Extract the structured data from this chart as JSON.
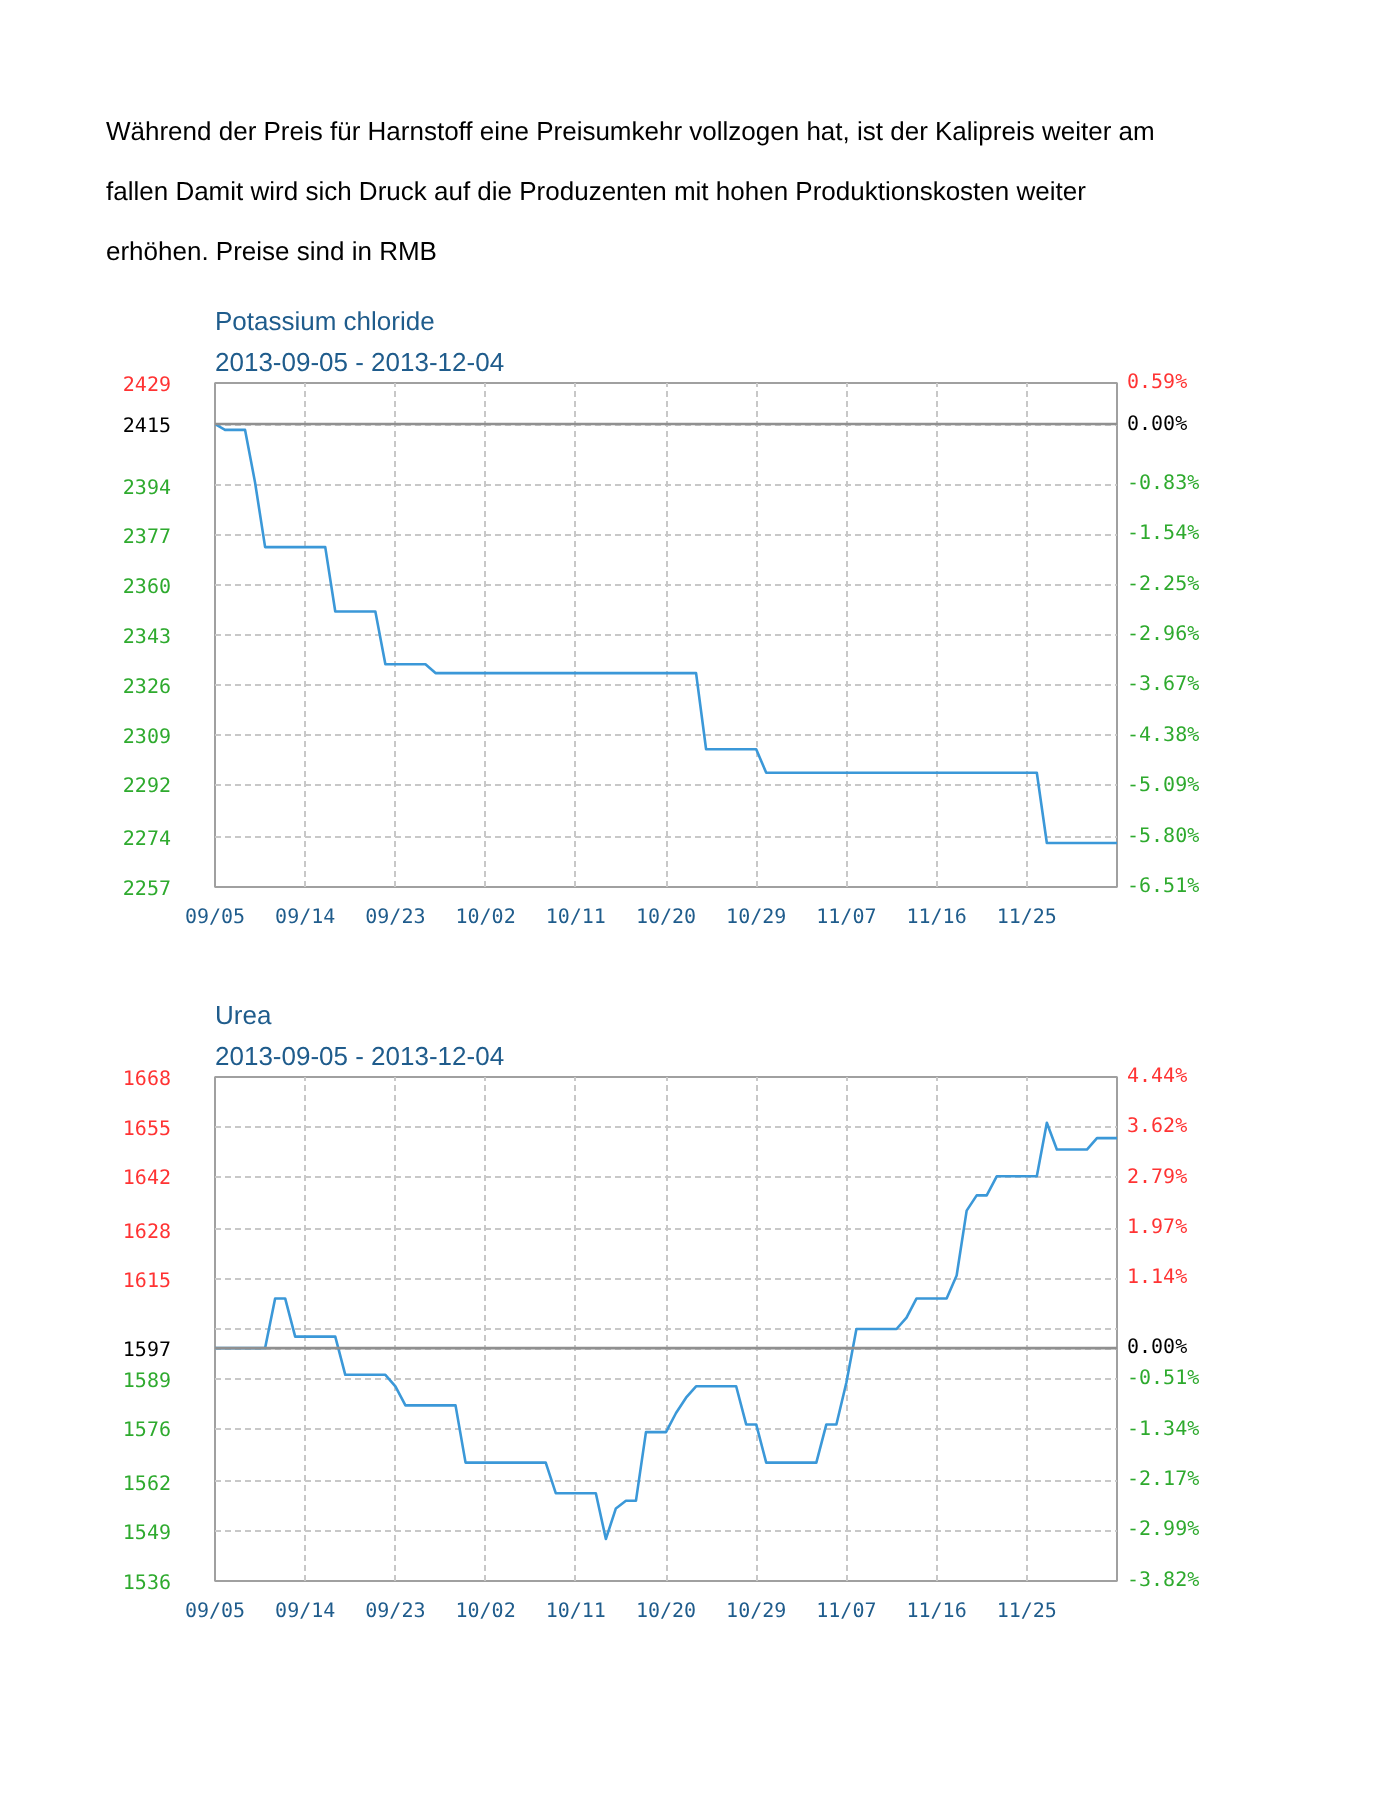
{
  "chart_data": [
    {
      "type": "line",
      "title": "Potassium chloride",
      "subtitle": "2013-09-05 - 2013-12-04",
      "annotations": [
        "Während der Preis für Harnstoff eine Preisumkehr vollzogen hat, ist der Kalipreis weiter am fallen Damit wird sich Druck auf die Produzenten mit hohen Produktionskosten weiter erhöhen. Preise sind in RMB"
      ],
      "x": [
        "2013-09-05",
        "2013-09-06",
        "2013-09-08",
        "2013-09-09",
        "2013-09-10",
        "2013-09-16",
        "2013-09-17",
        "2013-09-21",
        "2013-09-22",
        "2013-09-26",
        "2013-09-27",
        "2013-10-23",
        "2013-10-24",
        "2013-10-29",
        "2013-10-30",
        "2013-11-26",
        "2013-11-27",
        "2013-12-04"
      ],
      "series": [
        {
          "color": "#3b98d8",
          "values": [
            2415,
            2413,
            2413,
            2395,
            2373,
            2373,
            2351,
            2351,
            2333,
            2333,
            2330,
            2330,
            2304,
            2304,
            2296,
            2296,
            2272,
            2272
          ]
        }
      ],
      "xlim": [
        "2013-09-05",
        "2013-12-04"
      ],
      "xticks": [
        {
          "value": "2013-09-05",
          "label": "09/05"
        },
        {
          "value": "2013-09-14",
          "label": "09/14"
        },
        {
          "value": "2013-09-23",
          "label": "09/23"
        },
        {
          "value": "2013-10-02",
          "label": "10/02"
        },
        {
          "value": "2013-10-11",
          "label": "10/11"
        },
        {
          "value": "2013-10-20",
          "label": "10/20"
        },
        {
          "value": "2013-10-29",
          "label": "10/29"
        },
        {
          "value": "2013-11-07",
          "label": "11/07"
        },
        {
          "value": "2013-11-16",
          "label": "11/16"
        },
        {
          "value": "2013-11-25",
          "label": "11/25"
        }
      ],
      "ylim": [
        2257,
        2429
      ],
      "yticks": [
        2257,
        2274,
        2292,
        2309,
        2326,
        2343,
        2360,
        2377,
        2394,
        2415,
        2429
      ],
      "y2lim": [
        -6.51,
        0.59
      ],
      "y2ticks": [
        {
          "value": -6.51,
          "label": "-6.51%"
        },
        {
          "value": -5.8,
          "label": "-5.80%"
        },
        {
          "value": -5.09,
          "label": "-5.09%"
        },
        {
          "value": -4.38,
          "label": "-4.38%"
        },
        {
          "value": -3.67,
          "label": "-3.67%"
        },
        {
          "value": -2.96,
          "label": "-2.96%"
        },
        {
          "value": -2.25,
          "label": "-2.25%"
        },
        {
          "value": -1.54,
          "label": "-1.54%"
        },
        {
          "value": -0.83,
          "label": "-0.83%"
        },
        {
          "value": 0,
          "label": "0.00%"
        },
        {
          "value": 0.59,
          "label": "0.59%"
        }
      ],
      "ref_lines": [
        {
          "axis": "y",
          "value": 2415,
          "color": "#909090"
        }
      ],
      "grid": true
    },
    {
      "type": "line",
      "title": "Urea",
      "subtitle": "2013-09-05 - 2013-12-04",
      "x": [
        "2013-09-05",
        "2013-09-10",
        "2013-09-11",
        "2013-09-12",
        "2013-09-13",
        "2013-09-17",
        "2013-09-18",
        "2013-09-22",
        "2013-09-23",
        "2013-09-24",
        "2013-09-29",
        "2013-09-30",
        "2013-10-08",
        "2013-10-09",
        "2013-10-13",
        "2013-10-14",
        "2013-10-15",
        "2013-10-16",
        "2013-10-17",
        "2013-10-18",
        "2013-10-20",
        "2013-10-21",
        "2013-10-22",
        "2013-10-23",
        "2013-10-27",
        "2013-10-28",
        "2013-10-29",
        "2013-10-30",
        "2013-11-04",
        "2013-11-05",
        "2013-11-06",
        "2013-11-07",
        "2013-11-08",
        "2013-11-12",
        "2013-11-13",
        "2013-11-14",
        "2013-11-17",
        "2013-11-18",
        "2013-11-19",
        "2013-11-20",
        "2013-11-21",
        "2013-11-22",
        "2013-11-26",
        "2013-11-27",
        "2013-11-28",
        "2013-12-01",
        "2013-12-02",
        "2013-12-04"
      ],
      "series": [
        {
          "color": "#3b98d8",
          "values": [
            1597,
            1597,
            1610,
            1610,
            1600,
            1600,
            1590,
            1590,
            1587,
            1582,
            1582,
            1567,
            1567,
            1559,
            1559,
            1547,
            1555,
            1557,
            1557,
            1575,
            1575,
            1580,
            1584,
            1587,
            1587,
            1577,
            1577,
            1567,
            1567,
            1577,
            1577,
            1588,
            1602,
            1602,
            1605,
            1610,
            1610,
            1616,
            1633,
            1637,
            1637,
            1642,
            1642,
            1656,
            1649,
            1649,
            1652,
            1652
          ]
        }
      ],
      "xlim": [
        "2013-09-05",
        "2013-12-04"
      ],
      "xticks": [
        {
          "value": "2013-09-05",
          "label": "09/05"
        },
        {
          "value": "2013-09-14",
          "label": "09/14"
        },
        {
          "value": "2013-09-23",
          "label": "09/23"
        },
        {
          "value": "2013-10-02",
          "label": "10/02"
        },
        {
          "value": "2013-10-11",
          "label": "10/11"
        },
        {
          "value": "2013-10-20",
          "label": "10/20"
        },
        {
          "value": "2013-10-29",
          "label": "10/29"
        },
        {
          "value": "2013-11-07",
          "label": "11/07"
        },
        {
          "value": "2013-11-16",
          "label": "11/16"
        },
        {
          "value": "2013-11-25",
          "label": "11/25"
        }
      ],
      "ylim": [
        1536,
        1668
      ],
      "yticks": [
        1536,
        1549,
        1562,
        1576,
        1589,
        1597,
        {
          "value": 1602,
          "label": null
        },
        1615,
        1628,
        1642,
        1655,
        1668
      ],
      "y2lim": [
        -3.82,
        4.44
      ],
      "y2ticks": [
        {
          "value": -3.82,
          "label": "-3.82%"
        },
        {
          "value": -2.99,
          "label": "-2.99%"
        },
        {
          "value": -2.17,
          "label": "-2.17%"
        },
        {
          "value": -1.34,
          "label": "-1.34%"
        },
        {
          "value": -0.51,
          "label": "-0.51%"
        },
        {
          "value": 0,
          "label": "0.00%"
        },
        {
          "value": 1.14,
          "label": "1.14%"
        },
        {
          "value": 1.97,
          "label": "1.97%"
        },
        {
          "value": 2.79,
          "label": "2.79%"
        },
        {
          "value": 3.62,
          "label": "3.62%"
        },
        {
          "value": 4.44,
          "label": "4.44%"
        }
      ],
      "ref_lines": [
        {
          "axis": "y",
          "value": 1597,
          "color": "#909090"
        }
      ],
      "grid": true
    }
  ]
}
